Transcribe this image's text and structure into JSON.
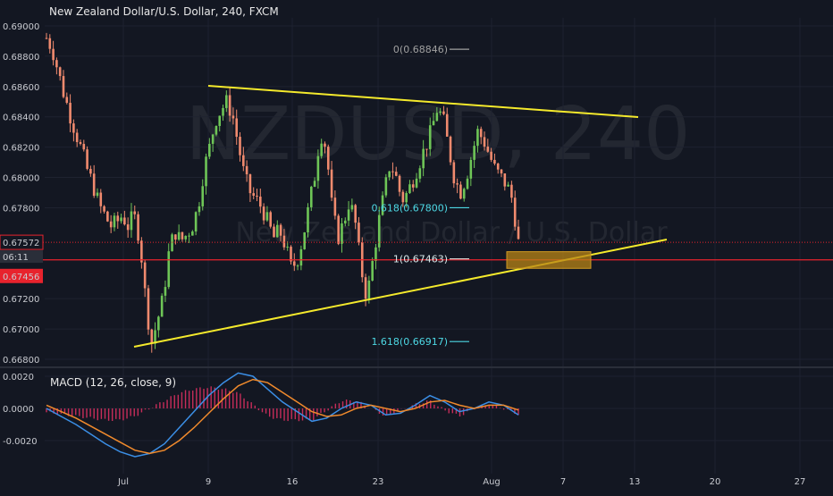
{
  "header": {
    "title": "New Zealand Dollar/U.S. Dollar, 240, FXCM"
  },
  "watermark": {
    "big": "NZDUSD, 240",
    "small": "New Zealand Dollar / U.S. Dollar"
  },
  "indicator": {
    "label": "MACD (12, 26, close, 9)"
  },
  "price_tags": {
    "current": "0.67572",
    "countdown": "06:11",
    "level": "0.67456"
  },
  "colors": {
    "background": "#131722",
    "up_candle": "#6ec557",
    "down_candle": "#f08a6e",
    "trendline": "#f5ea2c",
    "fib_level": "#4dd8e4",
    "fib_zero": "#a0a0a0",
    "support_line": "#e8232d",
    "macd_line": "#3b8fe6",
    "signal_line": "#f08a2c",
    "histogram": "#c72d5a",
    "zone_fill": "#b88416"
  },
  "chart_data": [
    {
      "type": "candlestick",
      "title": "New Zealand Dollar/U.S. Dollar, 240, FXCM",
      "x_ticks": [
        "Jul",
        "9",
        "16",
        "23",
        "Aug",
        "7",
        "13",
        "20",
        "27"
      ],
      "y_ticks": [
        "0.69000",
        "0.68800",
        "0.68600",
        "0.68400",
        "0.68200",
        "0.68000",
        "0.67800",
        "0.67200",
        "0.67000",
        "0.66800"
      ],
      "ylim": [
        0.6676,
        0.6908
      ],
      "price_path_close": [
        0.6892,
        0.6885,
        0.687,
        0.6855,
        0.6842,
        0.683,
        0.6818,
        0.6805,
        0.6795,
        0.6782,
        0.6775,
        0.6768,
        0.677,
        0.6775,
        0.6768,
        0.6775,
        0.676,
        0.672,
        0.669,
        0.6705,
        0.672,
        0.675,
        0.6765,
        0.6758,
        0.6762,
        0.6768,
        0.678,
        0.6805,
        0.682,
        0.6838,
        0.6845,
        0.685,
        0.684,
        0.682,
        0.68,
        0.679,
        0.6785,
        0.678,
        0.677,
        0.676,
        0.6765,
        0.6755,
        0.674,
        0.6745,
        0.676,
        0.678,
        0.68,
        0.683,
        0.682,
        0.678,
        0.676,
        0.677,
        0.6785,
        0.677,
        0.674,
        0.672,
        0.6745,
        0.677,
        0.679,
        0.681,
        0.68,
        0.6785,
        0.679,
        0.68,
        0.681,
        0.682,
        0.683,
        0.6845,
        0.684,
        0.682,
        0.68,
        0.679,
        0.68,
        0.6815,
        0.683,
        0.6825,
        0.6815,
        0.6805,
        0.68,
        0.6795,
        0.6785,
        0.6757
      ],
      "trendlines": [
        {
          "name": "upper",
          "from": [
            9,
            0.686
          ],
          "to": [
            13,
            0.684
          ]
        },
        {
          "name": "lower",
          "from": [
            2,
            0.6688
          ],
          "to": [
            15,
            0.676
          ]
        }
      ],
      "horizontal_lines": [
        {
          "name": "support",
          "value": 0.67456
        }
      ],
      "fibonacci": [
        {
          "label": "0(0.68846)",
          "ratio": 0,
          "value": 0.68846
        },
        {
          "label": "0.618(0.67800)",
          "ratio": 0.618,
          "value": 0.678
        },
        {
          "label": "1(0.67463)",
          "ratio": 1,
          "value": 0.67463
        },
        {
          "label": "1.618(0.66917)",
          "ratio": 1.618,
          "value": 0.66917
        }
      ],
      "zone": {
        "from_price": 0.674,
        "to_price": 0.6751
      }
    },
    {
      "type": "line",
      "title": "MACD (12, 26, close, 9)",
      "y_ticks": [
        "0.0020",
        "0.0000",
        "-0.0020"
      ],
      "ylim": [
        -0.0032,
        0.0024
      ],
      "series": [
        {
          "name": "MACD",
          "values": [
            0.0,
            -0.0005,
            -0.001,
            -0.0016,
            -0.0022,
            -0.0027,
            -0.003,
            -0.0028,
            -0.0022,
            -0.0012,
            -0.0002,
            0.0008,
            0.0016,
            0.0022,
            0.002,
            0.0012,
            0.0004,
            -0.0002,
            -0.0008,
            -0.0006,
            0.0,
            0.0004,
            0.0002,
            -0.0004,
            -0.0003,
            0.0002,
            0.0008,
            0.0004,
            -0.0002,
            0.0,
            0.0004,
            0.0002,
            -0.0004
          ]
        },
        {
          "name": "Signal",
          "values": [
            0.0002,
            -0.0002,
            -0.0006,
            -0.0011,
            -0.0016,
            -0.0021,
            -0.0026,
            -0.0028,
            -0.0026,
            -0.002,
            -0.0012,
            -0.0003,
            0.0006,
            0.0014,
            0.0018,
            0.0016,
            0.001,
            0.0004,
            -0.0002,
            -0.0005,
            -0.0004,
            0.0,
            0.0002,
            0.0,
            -0.0002,
            0.0,
            0.0004,
            0.0005,
            0.0002,
            0.0,
            0.0002,
            0.0002,
            -0.0001
          ]
        }
      ]
    }
  ]
}
